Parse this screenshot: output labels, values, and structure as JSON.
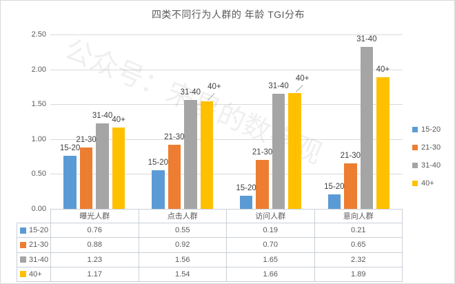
{
  "title": "四类不同行为人群的 年龄 TGI分布",
  "watermark": "公众号：宋星的数字观",
  "chart_data": {
    "type": "bar",
    "title": "四类不同行为人群的 年龄 TGI分布",
    "categories": [
      "曝光人群",
      "点击人群",
      "访问人群",
      "意向人群"
    ],
    "series": [
      {
        "name": "15-20",
        "color": "#5B9BD5",
        "values": [
          0.76,
          0.55,
          0.19,
          0.21
        ]
      },
      {
        "name": "21-30",
        "color": "#ED7D31",
        "values": [
          0.88,
          0.92,
          0.7,
          0.65
        ]
      },
      {
        "name": "31-40",
        "color": "#A5A5A5",
        "values": [
          1.23,
          1.56,
          1.65,
          2.32
        ]
      },
      {
        "name": "40+",
        "color": "#FFC000",
        "values": [
          1.17,
          1.54,
          1.66,
          1.89
        ]
      }
    ],
    "ylim": [
      0,
      2.5
    ],
    "yticks": [
      "0.00",
      "0.50",
      "1.00",
      "1.50",
      "2.00",
      "2.50"
    ],
    "grid": true,
    "legend_position": "right",
    "data_labels": "series-name-above-bar",
    "data_table": true,
    "colors": {
      "grid": "#d9d9d9",
      "axis": "#bfbfbf",
      "table_border": "#c9cfd6",
      "text": "#595959",
      "label_text": "#404040"
    }
  }
}
